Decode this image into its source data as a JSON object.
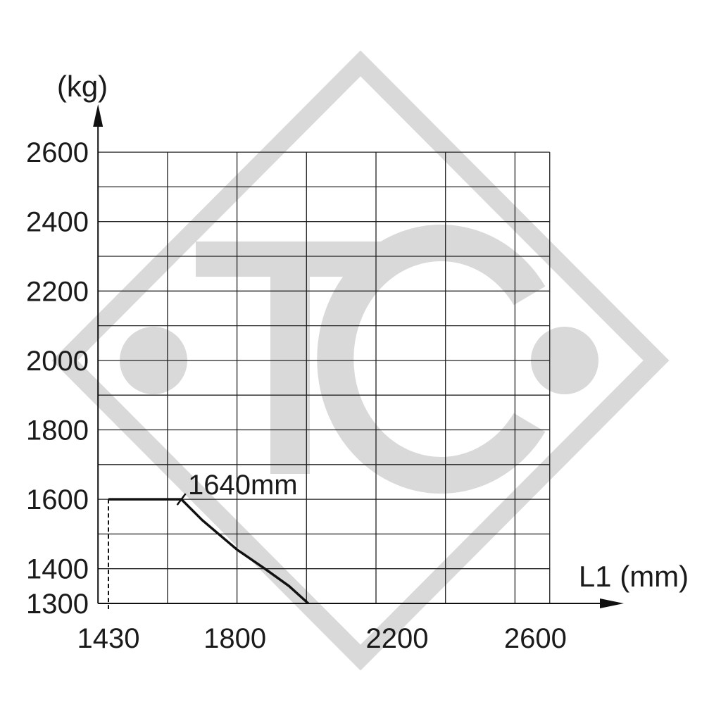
{
  "watermark": {
    "text": "TC",
    "color": "#d9d9d9"
  },
  "chart_data": {
    "type": "line",
    "title": "",
    "xlabel": "L1 (mm)",
    "ylabel": "(kg)",
    "xlim": [
      1400,
      2700
    ],
    "ylim": [
      1300,
      2600
    ],
    "x_grid": [
      1400,
      1600,
      1800,
      2000,
      2200,
      2400,
      2600,
      2700
    ],
    "y_grid": [
      1300,
      1400,
      1500,
      1600,
      1700,
      1800,
      1900,
      2000,
      2100,
      2200,
      2300,
      2400,
      2500,
      2600
    ],
    "x_ticks": [
      1430,
      1800,
      2200,
      2600
    ],
    "y_ticks": [
      1300,
      1400,
      1600,
      1800,
      2000,
      2200,
      2400,
      2600
    ],
    "grid": true,
    "series": [
      {
        "x": [
          1430,
          1640,
          1700,
          1800,
          1880,
          1950,
          2005
        ],
        "y": [
          1600,
          1600,
          1540,
          1455,
          1400,
          1350,
          1300
        ]
      }
    ],
    "reference_line": {
      "x": 1430,
      "style": "dashed"
    },
    "annotations": [
      {
        "text": "1640mm",
        "x": 1640,
        "y": 1600
      }
    ],
    "line_color": "#111111"
  }
}
